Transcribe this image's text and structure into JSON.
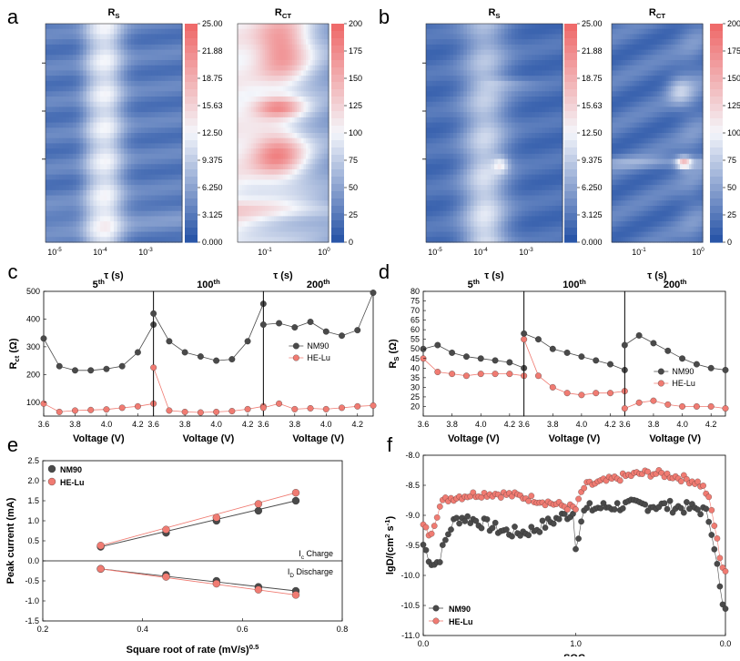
{
  "panel_labels": {
    "a": "a",
    "b": "b",
    "c": "c",
    "d": "d",
    "e": "e",
    "f": "f"
  },
  "heatmaps": {
    "a": {
      "rs_title": "R",
      "rs_title_sub": "S",
      "rct_title": "R",
      "rct_title_sub": "CT",
      "xaxis_label": "τ (s)",
      "rs_xticks": [
        {
          "base": "10",
          "exp": "-5"
        },
        {
          "base": "10",
          "exp": "-4"
        },
        {
          "base": "10",
          "exp": "-3"
        }
      ],
      "rct_xticks": [
        {
          "base": "10",
          "exp": "-1"
        },
        {
          "base": "10",
          "exp": "0"
        }
      ],
      "rs_colorbar": [
        "25.00",
        "21.88",
        "18.75",
        "15.63",
        "12.50",
        "9.375",
        "6.250",
        "3.125",
        "0.000"
      ],
      "rct_colorbar": [
        "200",
        "175",
        "150",
        "125",
        "100",
        "75",
        "50",
        "25",
        "0"
      ]
    },
    "b": {
      "rs_title": "R",
      "rs_title_sub": "S",
      "rct_title": "R",
      "rct_title_sub": "CT",
      "xaxis_label": "τ (s)",
      "rs_xticks": [
        {
          "base": "10",
          "exp": "-5"
        },
        {
          "base": "10",
          "exp": "-4"
        },
        {
          "base": "10",
          "exp": "-3"
        }
      ],
      "rct_xticks": [
        {
          "base": "10",
          "exp": "-1"
        },
        {
          "base": "10",
          "exp": "0"
        }
      ],
      "rs_colorbar": [
        "25.00",
        "21.88",
        "18.75",
        "15.63",
        "12.50",
        "9.375",
        "6.250",
        "3.125",
        "0.000"
      ],
      "rct_colorbar": [
        "200",
        "175",
        "150",
        "125",
        "100",
        "75",
        "50",
        "25",
        "0"
      ]
    },
    "colors": {
      "low": "#2a56a8",
      "mid": "#f4f6fb",
      "high": "#ef6b6b"
    }
  },
  "chart_data": [
    {
      "id": "c",
      "type": "line",
      "ylabel": "R",
      "ylabel_sub": "ct",
      "ylabel_unit": " (Ω)",
      "ylim": [
        50,
        500
      ],
      "yticks": [
        100,
        200,
        300,
        400,
        500
      ],
      "xlim": [
        3.6,
        4.3
      ],
      "xticks": [
        "3.6",
        "3.8",
        "4.0",
        "4.2"
      ],
      "xlabel": "Voltage (V)",
      "subpanels": [
        {
          "label": "5",
          "sup": "th"
        },
        {
          "label": "100",
          "sup": "th"
        },
        {
          "label": "200",
          "sup": "th"
        }
      ],
      "x": [
        3.6,
        3.7,
        3.8,
        3.9,
        4.0,
        4.1,
        4.2,
        4.3
      ],
      "series": [
        {
          "name": "NM90",
          "color": "#4a4a4a",
          "values": [
            [
              330,
              230,
              215,
              215,
              220,
              230,
              280,
              380
            ],
            [
              420,
              320,
              280,
              265,
              250,
              255,
              320,
              455
            ],
            [
              380,
              385,
              370,
              390,
              355,
              340,
              360,
              495
            ]
          ]
        },
        {
          "name": "HE-Lu",
          "color": "#f07b72",
          "values": [
            [
              95,
              65,
              70,
              72,
              74,
              80,
              85,
              95
            ],
            [
              225,
              70,
              65,
              63,
              65,
              68,
              75,
              85
            ],
            [
              80,
              95,
              75,
              78,
              75,
              80,
              85,
              88
            ]
          ]
        }
      ]
    },
    {
      "id": "d",
      "type": "line",
      "ylabel": "R",
      "ylabel_sub": "S",
      "ylabel_unit": " (Ω)",
      "ylim": [
        15,
        80
      ],
      "yticks": [
        20,
        25,
        30,
        35,
        40,
        45,
        50,
        55,
        60,
        65,
        70,
        75,
        80
      ],
      "xlim": [
        3.6,
        4.3
      ],
      "xticks": [
        "3.6",
        "3.8",
        "4.0",
        "4.2"
      ],
      "xlabel": "Voltage (V)",
      "subpanels": [
        {
          "label": "5",
          "sup": "th"
        },
        {
          "label": "100",
          "sup": "th"
        },
        {
          "label": "200",
          "sup": "th"
        }
      ],
      "x": [
        3.6,
        3.7,
        3.8,
        3.9,
        4.0,
        4.1,
        4.2,
        4.3
      ],
      "series": [
        {
          "name": "NM90",
          "color": "#4a4a4a",
          "values": [
            [
              50,
              52,
              48,
              46,
              45,
              44,
              43,
              40
            ],
            [
              58,
              55,
              50,
              48,
              46,
              44,
              42,
              39
            ],
            [
              52,
              57,
              53,
              49,
              45,
              42,
              40,
              39
            ]
          ]
        },
        {
          "name": "HE-Lu",
          "color": "#f07b72",
          "values": [
            [
              45,
              38,
              37,
              36,
              37,
              37,
              37,
              36
            ],
            [
              55,
              36,
              30,
              27,
              26,
              27,
              27,
              28
            ],
            [
              19,
              22,
              23,
              21,
              20,
              20,
              20,
              19
            ]
          ]
        }
      ]
    },
    {
      "id": "e",
      "type": "line",
      "title": "",
      "xlabel": "Square root of rate (mV/s)",
      "xlabel_sup": "0.5",
      "ylabel": "Peak current (mA)",
      "xlim": [
        0.2,
        0.8
      ],
      "xticks": [
        "0.2",
        "0.4",
        "0.6",
        "0.8"
      ],
      "ylim": [
        -1.5,
        2.5
      ],
      "yticks": [
        "-1.5",
        "-1.0",
        "-0.5",
        "0.0",
        "0.5",
        "1.0",
        "1.5",
        "2.0",
        "2.5"
      ],
      "annotations": [
        {
          "text": "I",
          "sub": "c",
          "rest": " Charge"
        },
        {
          "text": "I",
          "sub": "D",
          "rest": " Discharge"
        }
      ],
      "x": [
        0.316,
        0.447,
        0.548,
        0.632,
        0.707
      ],
      "series": [
        {
          "name": "NM90",
          "color": "#4a4a4a",
          "charge": [
            0.35,
            0.7,
            1.0,
            1.25,
            1.5
          ],
          "discharge": [
            -0.2,
            -0.35,
            -0.5,
            -0.65,
            -0.75
          ]
        },
        {
          "name": "HE-Lu",
          "color": "#f07b72",
          "charge": [
            0.38,
            0.78,
            1.08,
            1.42,
            1.7
          ],
          "discharge": [
            -0.2,
            -0.4,
            -0.57,
            -0.72,
            -0.85
          ]
        }
      ]
    },
    {
      "id": "f",
      "type": "scatter",
      "xlabel": "SOC",
      "ylabel": "lgD/(cm",
      "ylabel_sup": "2",
      "ylabel_mid": " s",
      "ylabel_sup2": "-1",
      "ylabel_end": ")",
      "xticks": [
        "0.0",
        "1.0",
        "0.0"
      ],
      "ylim": [
        -11.0,
        -8.0
      ],
      "yticks": [
        "-8.0",
        "-8.5",
        "-9.0",
        "-9.5",
        "-10.0",
        "-10.5",
        "-11.0"
      ],
      "legend": [
        "NM90",
        "HE-Lu"
      ],
      "colors": {
        "NM90": "#4a4a4a",
        "HE-Lu": "#f07b72"
      }
    }
  ]
}
